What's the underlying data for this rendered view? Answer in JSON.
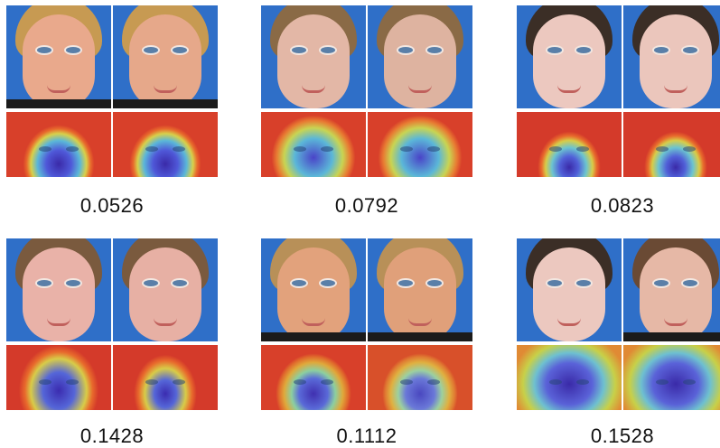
{
  "figure": {
    "scores": [
      "0.0526",
      "0.0792",
      "0.0823",
      "0.1428",
      "0.1112",
      "0.1528"
    ]
  },
  "colors": {
    "background": "#2f6fc8",
    "heat_hot": "#d8402a",
    "heat_cold": "#3a2aa8"
  },
  "icons": [
    "face-photo",
    "saliency-heatmap"
  ]
}
